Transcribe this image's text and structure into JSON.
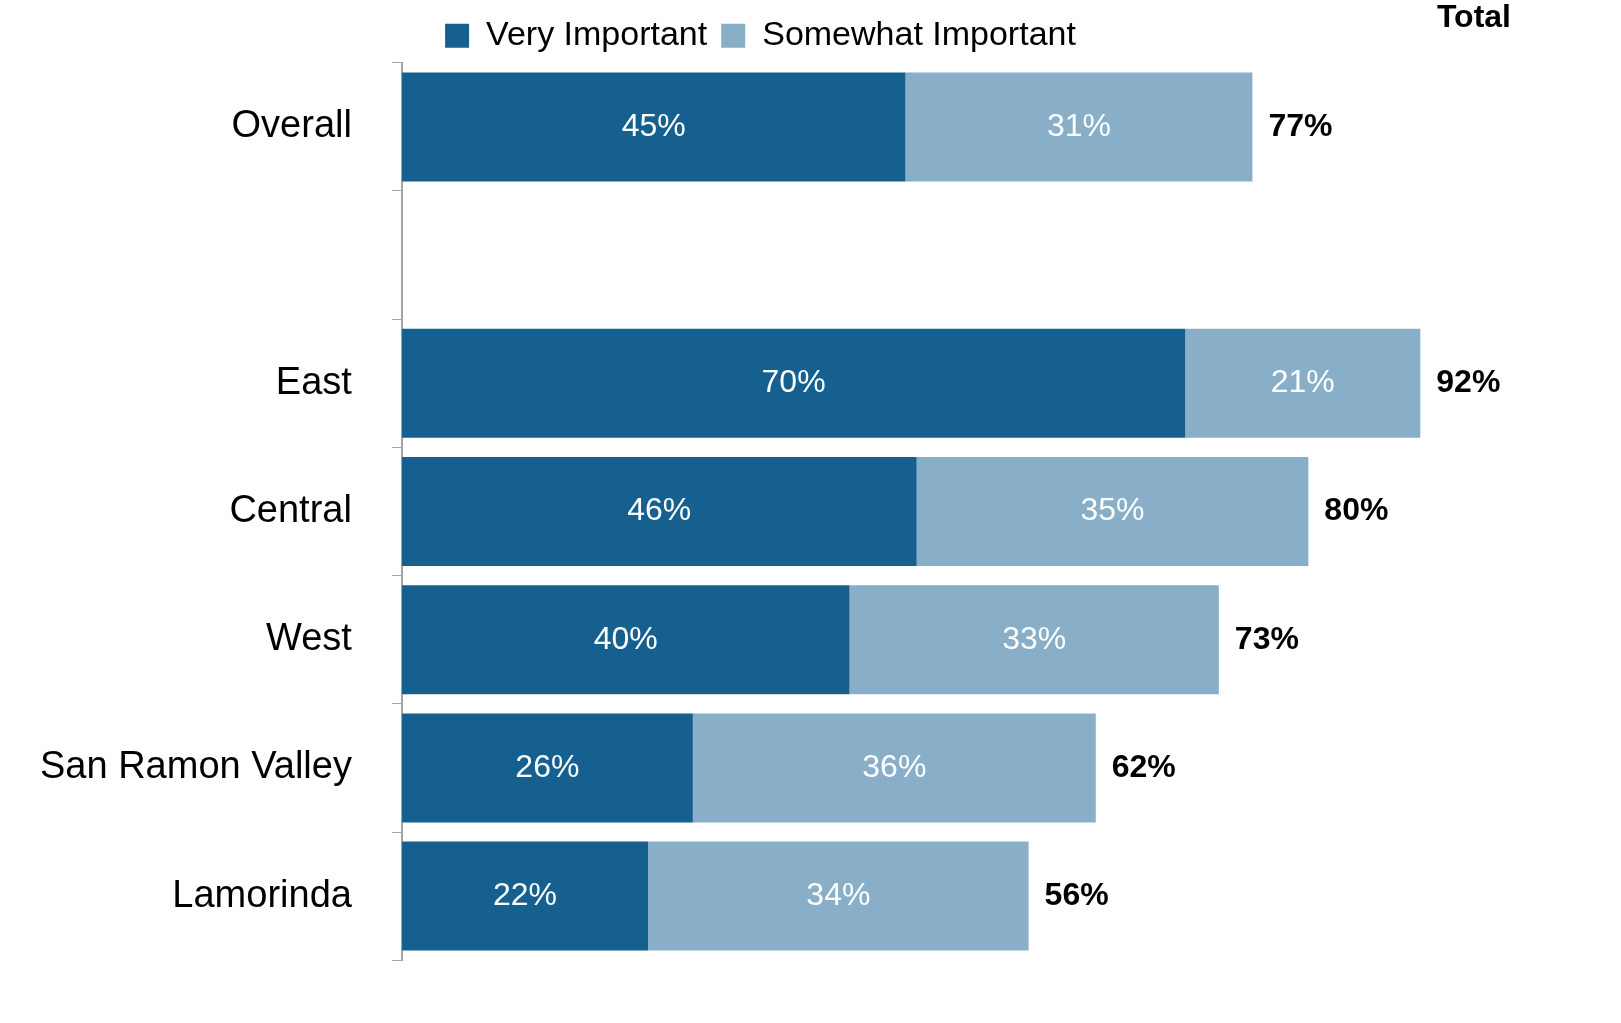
{
  "chart_data": {
    "type": "bar",
    "orientation": "horizontal",
    "stacked": true,
    "legend": "top",
    "annotations": [
      "Total"
    ],
    "categories": [
      "Overall",
      null,
      "East",
      "Central",
      "West",
      "San Ramon Valley",
      "Lamorinda"
    ],
    "series": [
      {
        "name": "Very Important",
        "color": "#15608f",
        "values": [
          45,
          null,
          70,
          46,
          40,
          26,
          22
        ],
        "value_labels": [
          "45%",
          null,
          "70%",
          "46%",
          "40%",
          "26%",
          "22%"
        ]
      },
      {
        "name": "Somewhat Important",
        "color": "#88aec8",
        "values": [
          31,
          null,
          21,
          35,
          33,
          36,
          34
        ],
        "value_labels": [
          "31%",
          null,
          "21%",
          "35%",
          "33%",
          "36%",
          "34%"
        ]
      }
    ],
    "totals": [
      "77%",
      null,
      "92%",
      "80%",
      "73%",
      "62%",
      "56%"
    ]
  }
}
